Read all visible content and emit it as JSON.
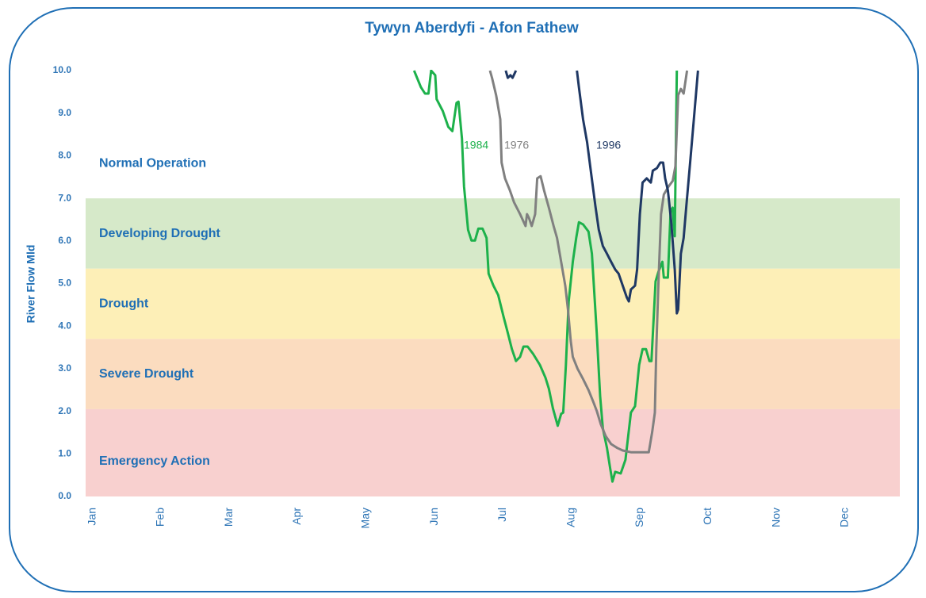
{
  "chart_data": {
    "type": "line",
    "title": "Tywyn Aberdyfi - Afon Fathew",
    "y_label": "River Flow Mld",
    "categories": [
      "Jan",
      "Feb",
      "Mar",
      "Apr",
      "May",
      "Jun",
      "Jul",
      "Aug",
      "Sep",
      "Oct",
      "Nov",
      "Dec"
    ],
    "xlim": [
      -0.1,
      11.8
    ],
    "ylim": [
      0,
      10
    ],
    "yticks": [
      {
        "value": 0,
        "label": "0.0"
      },
      {
        "value": 1,
        "label": "1.0"
      },
      {
        "value": 2,
        "label": "2.0"
      },
      {
        "value": 3,
        "label": "3.0"
      },
      {
        "value": 4,
        "label": "4.0"
      },
      {
        "value": 5,
        "label": "5.0"
      },
      {
        "value": 6,
        "label": "6.0"
      },
      {
        "value": 7,
        "label": "7.0"
      },
      {
        "value": 8,
        "label": "8.0"
      },
      {
        "value": 9,
        "label": "9.0"
      },
      {
        "value": 10,
        "label": "10.0"
      }
    ],
    "bands": [
      {
        "name": "Normal Operation",
        "from": 7,
        "to": 10,
        "color": "#ffffff"
      },
      {
        "name": "Developing Drought",
        "from": 5.35,
        "to": 7,
        "color": "#d6e9c9"
      },
      {
        "name": "Drought",
        "from": 3.7,
        "to": 5.35,
        "color": "#fdefb7"
      },
      {
        "name": "Severe Drought",
        "from": 2.05,
        "to": 3.7,
        "color": "#fbdcbf"
      },
      {
        "name": "Emergency Action",
        "from": 0,
        "to": 2.05,
        "color": "#f8d0cf"
      }
    ],
    "series": [
      {
        "name": "1984",
        "color": "#1db14b",
        "x": [
          4.7,
          4.8,
          4.86,
          4.91,
          4.95,
          5.01,
          5.03,
          5.12,
          5.2,
          5.26,
          5.32,
          5.35,
          5.4,
          5.43,
          5.49,
          5.54,
          5.59,
          5.64,
          5.7,
          5.76,
          5.79,
          5.86,
          5.93,
          6.01,
          6.07,
          6.13,
          6.19,
          6.25,
          6.3,
          6.36,
          6.44,
          6.54,
          6.62,
          6.67,
          6.73,
          6.8,
          6.85,
          6.88,
          6.92,
          6.96,
          7.02,
          7.07,
          7.11,
          7.17,
          7.25,
          7.3,
          7.37,
          7.42,
          7.46,
          7.52,
          7.57,
          7.6,
          7.64,
          7.72,
          7.79,
          7.87,
          7.93,
          7.99,
          8.04,
          8.09,
          8.14,
          8.17,
          8.23,
          8.27,
          8.33,
          8.35,
          8.41,
          8.45,
          8.48,
          8.51,
          8.54
        ],
        "values": [
          10.0,
          9.61,
          9.46,
          9.46,
          10.0,
          9.89,
          9.33,
          9.05,
          8.68,
          8.58,
          9.24,
          9.27,
          8.4,
          7.28,
          6.26,
          6.01,
          6.01,
          6.29,
          6.29,
          6.07,
          5.23,
          4.95,
          4.73,
          4.21,
          3.84,
          3.46,
          3.18,
          3.28,
          3.52,
          3.52,
          3.35,
          3.09,
          2.79,
          2.53,
          2.07,
          1.66,
          1.94,
          1.97,
          3.09,
          4.58,
          5.51,
          6.07,
          6.44,
          6.39,
          6.22,
          5.7,
          3.84,
          2.35,
          1.6,
          1.14,
          0.63,
          0.35,
          0.58,
          0.54,
          0.86,
          1.97,
          2.12,
          3.09,
          3.46,
          3.46,
          3.18,
          3.18,
          5.05,
          5.27,
          5.51,
          5.14,
          5.14,
          6.72,
          6.78,
          6.11,
          10.0
        ]
      },
      {
        "name": "1976",
        "color": "#808080",
        "x": [
          5.81,
          5.84,
          5.9,
          5.96,
          5.98,
          6.03,
          6.1,
          6.16,
          6.25,
          6.33,
          6.35,
          6.38,
          6.42,
          6.47,
          6.5,
          6.55,
          6.6,
          6.67,
          6.74,
          6.79,
          6.85,
          6.91,
          6.95,
          6.99,
          7.02,
          7.09,
          7.17,
          7.25,
          7.32,
          7.37,
          7.43,
          7.5,
          7.58,
          7.67,
          7.75,
          7.87,
          8.13,
          8.18,
          8.22,
          8.24,
          8.27,
          8.31,
          8.35,
          8.42,
          8.48,
          8.52,
          8.56,
          8.6,
          8.64,
          8.69
        ],
        "values": [
          10.0,
          9.83,
          9.42,
          8.86,
          7.84,
          7.47,
          7.19,
          6.91,
          6.63,
          6.35,
          6.63,
          6.54,
          6.35,
          6.63,
          7.47,
          7.52,
          7.19,
          6.78,
          6.35,
          6.07,
          5.51,
          4.95,
          4.39,
          3.65,
          3.28,
          3.0,
          2.76,
          2.5,
          2.22,
          2.01,
          1.69,
          1.42,
          1.23,
          1.14,
          1.08,
          1.04,
          1.04,
          1.51,
          1.97,
          3.46,
          4.95,
          6.63,
          7.09,
          7.28,
          7.41,
          7.75,
          9.42,
          9.57,
          9.46,
          10.0
        ]
      },
      {
        "name": "1996",
        "color": "#1f3864",
        "x": [
          6.04,
          6.07,
          6.11,
          6.14,
          6.19,
          null,
          7.08,
          7.11,
          7.17,
          7.23,
          7.29,
          7.35,
          7.4,
          7.46,
          7.52,
          7.58,
          7.64,
          7.69,
          7.75,
          7.81,
          7.84,
          7.87,
          7.93,
          7.96,
          8.0,
          8.04,
          8.1,
          8.16,
          8.19,
          8.25,
          8.3,
          8.34,
          8.37,
          8.41,
          8.46,
          8.51,
          8.54,
          8.56,
          8.6,
          8.64,
          8.68,
          8.74,
          8.79,
          8.85
        ],
        "values": [
          10.0,
          9.83,
          9.89,
          9.83,
          10.0,
          null,
          10.0,
          9.61,
          8.86,
          8.31,
          7.56,
          6.82,
          6.26,
          5.88,
          5.7,
          5.51,
          5.33,
          5.23,
          4.95,
          4.67,
          4.58,
          4.86,
          4.95,
          5.33,
          6.63,
          7.37,
          7.47,
          7.37,
          7.65,
          7.71,
          7.84,
          7.84,
          7.47,
          7.19,
          6.44,
          5.33,
          4.3,
          4.39,
          5.7,
          6.07,
          6.82,
          7.93,
          8.86,
          10.0
        ]
      }
    ]
  }
}
